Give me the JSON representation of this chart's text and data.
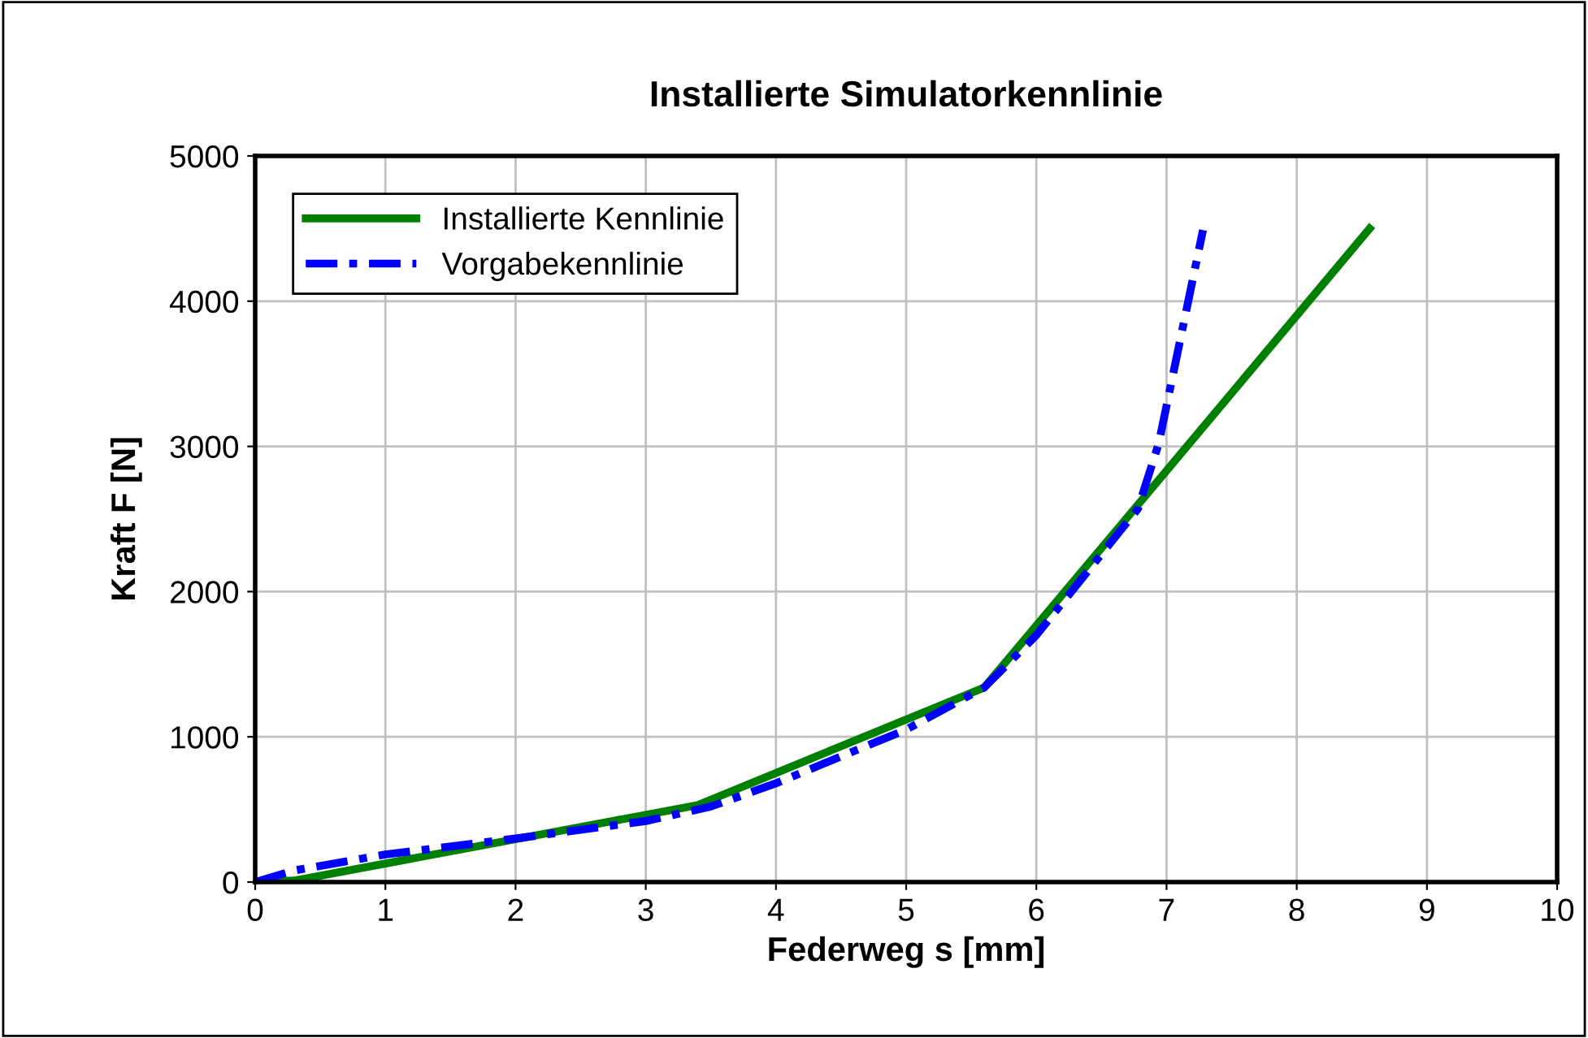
{
  "chart_data": {
    "type": "line",
    "title": "Installierte Simulatorkennlinie",
    "xlabel": "Federweg s [mm]",
    "ylabel": "Kraft F [N]",
    "xlim": [
      0,
      10
    ],
    "xticks": [
      0,
      1,
      2,
      3,
      4,
      5,
      6,
      7,
      8,
      9,
      10
    ],
    "ylim": [
      0,
      5000
    ],
    "yticks": [
      0,
      1000,
      2000,
      3000,
      4000,
      5000
    ],
    "grid": true,
    "legend": "top left",
    "series": [
      {
        "name": "Installierte Kennlinie",
        "color": "#008000",
        "line_style": "solid",
        "x": [
          0,
          0.3,
          3.4,
          5.6,
          6.82,
          8.56
        ],
        "values": [
          0,
          10,
          530,
          1340,
          2640,
          4500
        ]
      },
      {
        "name": "Vorgabekennlinie",
        "color": "#0000ff",
        "line_style": "dashed",
        "x": [
          0,
          0.3,
          1,
          2,
          3,
          3.5,
          4,
          5,
          5.6,
          6,
          6.78,
          6.94,
          7.28
        ],
        "values": [
          0,
          80,
          190,
          300,
          420,
          520,
          680,
          1050,
          1340,
          1700,
          2570,
          3020,
          4490
        ]
      }
    ]
  }
}
